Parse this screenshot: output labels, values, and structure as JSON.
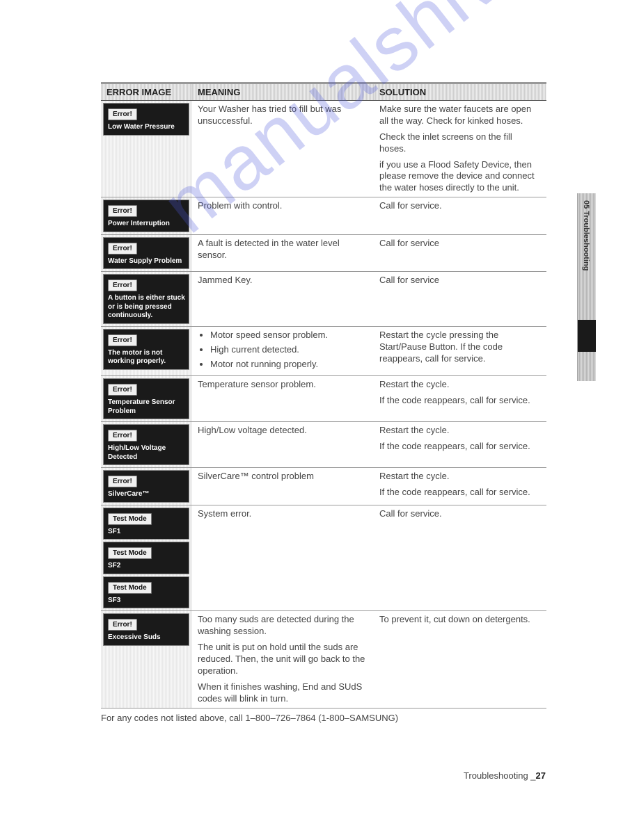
{
  "watermark_text": "manualshive.com",
  "side_tab": "05 Troubleshooting",
  "headers": {
    "col1": "ERROR IMAGE",
    "col2": "MEANING",
    "col3": "SOLUTION"
  },
  "rows": [
    {
      "image": {
        "badges": [
          {
            "tag": "Error!",
            "label": "Low Water Pressure"
          }
        ]
      },
      "meaning": [
        "Your Washer has tried to fill but was unsuccessful."
      ],
      "solution": [
        "Make sure the water faucets are open all the way. Check for kinked hoses.",
        "Check the inlet screens on the fill hoses.",
        "if you use a Flood Safety Device, then please remove the device and connect the water hoses directly to the unit."
      ]
    },
    {
      "image": {
        "badges": [
          {
            "tag": "Error!",
            "label": "Power Interruption"
          }
        ]
      },
      "meaning": [
        "Problem with control."
      ],
      "solution": [
        "Call for service."
      ]
    },
    {
      "image": {
        "badges": [
          {
            "tag": "Error!",
            "label": "Water Supply Problem"
          }
        ]
      },
      "meaning": [
        "A fault is detected in the water level sensor."
      ],
      "solution": [
        "Call for service"
      ]
    },
    {
      "image": {
        "badges": [
          {
            "tag": "Error!",
            "label": "A button is either stuck or is being pressed continuously."
          }
        ]
      },
      "meaning": [
        "Jammed Key."
      ],
      "solution": [
        "Call for service"
      ]
    },
    {
      "image": {
        "badges": [
          {
            "tag": "Error!",
            "label": "The motor is not working properly."
          }
        ]
      },
      "meaning_bullets": [
        "Motor speed sensor problem.",
        "High current detected.",
        "Motor not running properly."
      ],
      "solution": [
        "Restart the cycle pressing the Start/Pause Button. If the code reappears, call for service."
      ]
    },
    {
      "image": {
        "badges": [
          {
            "tag": "Error!",
            "label": "Temperature Sensor Problem"
          }
        ]
      },
      "meaning": [
        "Temperature sensor problem."
      ],
      "solution": [
        "Restart the cycle.",
        "If the code reappears, call for service."
      ]
    },
    {
      "image": {
        "badges": [
          {
            "tag": "Error!",
            "label": "High/Low Voltage Detected"
          }
        ]
      },
      "meaning": [
        "High/Low voltage detected."
      ],
      "solution": [
        "Restart the cycle.",
        "If the code reappears, call for service."
      ]
    },
    {
      "image": {
        "badges": [
          {
            "tag": "Error!",
            "label": "SilverCare™"
          }
        ]
      },
      "meaning": [
        "SilverCare™ control problem"
      ],
      "solution": [
        "Restart the cycle.",
        "If the code reappears, call for service."
      ]
    },
    {
      "image": {
        "badges": [
          {
            "tag": "Test Mode",
            "label": "SF1"
          },
          {
            "tag": "Test Mode",
            "label": "SF2"
          },
          {
            "tag": "Test Mode",
            "label": "SF3"
          }
        ]
      },
      "meaning": [
        "System error."
      ],
      "solution": [
        "Call for service."
      ]
    },
    {
      "image": {
        "badges": [
          {
            "tag": "Error!",
            "label": "Excessive Suds"
          }
        ]
      },
      "meaning": [
        "Too many suds are detected during the washing session.",
        "The unit is put on hold until the suds are reduced. Then, the unit will go back to the operation.",
        "When it finishes washing, End and SUdS codes will blink in turn."
      ],
      "solution": [
        "To prevent it, cut down on detergents."
      ]
    }
  ],
  "footnote": "For any codes not listed above, call 1–800–726–7864 (1-800–SAMSUNG)",
  "pagefoot_label": "Troubleshooting _",
  "pagefoot_num": "27"
}
